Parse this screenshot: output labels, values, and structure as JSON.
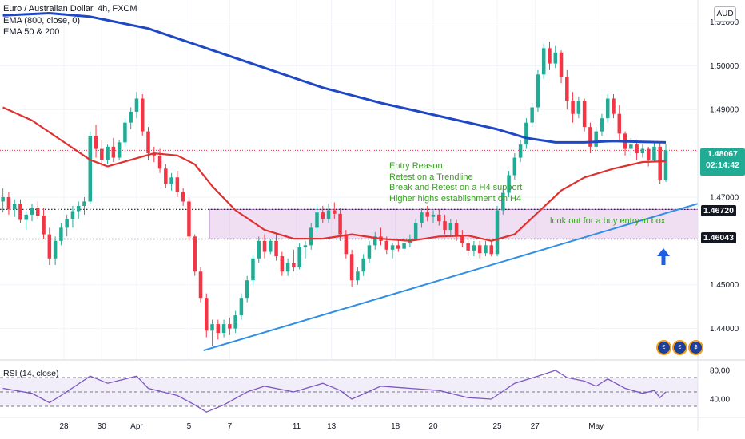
{
  "header": {
    "lines": [
      "Euro / Australian Dollar, 4h, FXCM",
      "EMA (800, close, 0)",
      "EMA 50 & 200"
    ],
    "currency_button": "AUD"
  },
  "price_tags": {
    "last_price": "1.48067",
    "countdown": "02:14:42",
    "level_upper": "1.46720",
    "level_lower": "1.46043"
  },
  "annotations": {
    "entry_reason_lines": [
      "Entry Reason;",
      "Retest on a Trendline",
      "Break and Retest on a H4  support",
      "Higher highs establishment on H4"
    ],
    "box_note": "look out for a buy entry in box"
  },
  "rsi": {
    "label": "RSI (14, close)"
  },
  "icons": [
    "flag-icon",
    "flag-icon",
    "flag-icon"
  ],
  "chart_data": {
    "type": "candlestick",
    "symbol": "Euro / Australian Dollar",
    "timeframe": "4h",
    "source": "FXCM",
    "y_ticks": [
      "1.51000",
      "1.50000",
      "1.49000",
      "1.47000",
      "1.45000",
      "1.44000"
    ],
    "y_range": [
      1.433,
      1.515
    ],
    "x_ticks": [
      "28",
      "30",
      "Apr",
      "5",
      "7",
      "11",
      "13",
      "18",
      "20",
      "25",
      "27",
      "May"
    ],
    "x_range": [
      0,
      120
    ],
    "candles": [
      [
        0,
        1.469,
        1.472,
        1.4665,
        1.47
      ],
      [
        1,
        1.47,
        1.4712,
        1.466,
        1.4672
      ],
      [
        2,
        1.4672,
        1.4695,
        1.4655,
        1.4685
      ],
      [
        3,
        1.4685,
        1.4695,
        1.464,
        1.4648
      ],
      [
        4,
        1.4648,
        1.4668,
        1.4625,
        1.466
      ],
      [
        5,
        1.466,
        1.4685,
        1.4645,
        1.4675
      ],
      [
        6,
        1.4675,
        1.469,
        1.465,
        1.4658
      ],
      [
        7,
        1.4658,
        1.4675,
        1.4605,
        1.4615
      ],
      [
        8,
        1.4615,
        1.463,
        1.4545,
        1.456
      ],
      [
        9,
        1.456,
        1.461,
        1.4545,
        1.46
      ],
      [
        10,
        1.46,
        1.464,
        1.459,
        1.463
      ],
      [
        11,
        1.463,
        1.466,
        1.461,
        1.465
      ],
      [
        12,
        1.465,
        1.468,
        1.463,
        1.4668
      ],
      [
        13,
        1.4668,
        1.469,
        1.465,
        1.468
      ],
      [
        14,
        1.468,
        1.47,
        1.466,
        1.469
      ],
      [
        15,
        1.469,
        1.485,
        1.4685,
        1.484
      ],
      [
        16,
        1.484,
        1.4865,
        1.479,
        1.481
      ],
      [
        17,
        1.481,
        1.483,
        1.477,
        1.4785
      ],
      [
        18,
        1.4785,
        1.482,
        1.4775,
        1.4815
      ],
      [
        19,
        1.4815,
        1.4835,
        1.478,
        1.479
      ],
      [
        20,
        1.479,
        1.483,
        1.4785,
        1.4825
      ],
      [
        21,
        1.4825,
        1.488,
        1.4815,
        1.487
      ],
      [
        22,
        1.487,
        1.4905,
        1.4855,
        1.4895
      ],
      [
        23,
        1.4895,
        1.494,
        1.488,
        1.4925
      ],
      [
        24,
        1.4925,
        1.4935,
        1.484,
        1.485
      ],
      [
        25,
        1.485,
        1.486,
        1.4785,
        1.48
      ],
      [
        26,
        1.48,
        1.4815,
        1.478,
        1.4795
      ],
      [
        27,
        1.4795,
        1.481,
        1.4755,
        1.4765
      ],
      [
        28,
        1.4765,
        1.4775,
        1.472,
        1.473
      ],
      [
        29,
        1.473,
        1.4755,
        1.4715,
        1.4745
      ],
      [
        30,
        1.4745,
        1.476,
        1.47,
        1.4712
      ],
      [
        31,
        1.4712,
        1.472,
        1.468,
        1.469
      ],
      [
        32,
        1.469,
        1.47,
        1.46,
        1.461
      ],
      [
        33,
        1.461,
        1.4615,
        1.452,
        1.453
      ],
      [
        34,
        1.453,
        1.454,
        1.446,
        1.447
      ],
      [
        35,
        1.447,
        1.448,
        1.438,
        1.4395
      ],
      [
        36,
        1.4395,
        1.442,
        1.436,
        1.441
      ],
      [
        37,
        1.441,
        1.442,
        1.4375,
        1.439
      ],
      [
        38,
        1.439,
        1.442,
        1.438,
        1.441
      ],
      [
        39,
        1.441,
        1.4425,
        1.4385,
        1.44
      ],
      [
        40,
        1.44,
        1.444,
        1.439,
        1.443
      ],
      [
        41,
        1.443,
        1.448,
        1.442,
        1.447
      ],
      [
        42,
        1.447,
        1.452,
        1.446,
        1.451
      ],
      [
        43,
        1.451,
        1.457,
        1.45,
        1.456
      ],
      [
        44,
        1.456,
        1.461,
        1.455,
        1.46
      ],
      [
        45,
        1.46,
        1.4615,
        1.456,
        1.4575
      ],
      [
        46,
        1.4575,
        1.4605,
        1.457,
        1.46
      ],
      [
        47,
        1.46,
        1.4615,
        1.4555,
        1.4565
      ],
      [
        48,
        1.4565,
        1.4575,
        1.452,
        1.453
      ],
      [
        49,
        1.453,
        1.456,
        1.452,
        1.455
      ],
      [
        50,
        1.455,
        1.458,
        1.453,
        1.454
      ],
      [
        51,
        1.454,
        1.4595,
        1.4535,
        1.4585
      ],
      [
        52,
        1.4585,
        1.46,
        1.456,
        1.459
      ],
      [
        53,
        1.459,
        1.464,
        1.458,
        1.463
      ],
      [
        54,
        1.463,
        1.468,
        1.462,
        1.4665
      ],
      [
        55,
        1.4665,
        1.468,
        1.464,
        1.465
      ],
      [
        56,
        1.465,
        1.4685,
        1.464,
        1.467
      ],
      [
        57,
        1.467,
        1.4688,
        1.465,
        1.4662
      ],
      [
        58,
        1.4662,
        1.4675,
        1.46,
        1.4615
      ],
      [
        59,
        1.4615,
        1.4625,
        1.456,
        1.457
      ],
      [
        60,
        1.457,
        1.458,
        1.4495,
        1.451
      ],
      [
        61,
        1.451,
        1.454,
        1.45,
        1.453
      ],
      [
        62,
        1.453,
        1.457,
        1.452,
        1.456
      ],
      [
        63,
        1.456,
        1.46,
        1.455,
        1.459
      ],
      [
        64,
        1.459,
        1.462,
        1.458,
        1.461
      ],
      [
        65,
        1.461,
        1.463,
        1.459,
        1.46
      ],
      [
        66,
        1.46,
        1.461,
        1.457,
        1.458
      ],
      [
        67,
        1.458,
        1.4595,
        1.456,
        1.459
      ],
      [
        68,
        1.459,
        1.4605,
        1.4575,
        1.4582
      ],
      [
        69,
        1.4582,
        1.46,
        1.4575,
        1.4595
      ],
      [
        70,
        1.4595,
        1.4615,
        1.4585,
        1.4605
      ],
      [
        71,
        1.4605,
        1.465,
        1.46,
        1.464
      ],
      [
        72,
        1.464,
        1.4675,
        1.463,
        1.4665
      ],
      [
        73,
        1.4665,
        1.468,
        1.4645,
        1.4655
      ],
      [
        74,
        1.4655,
        1.467,
        1.464,
        1.466
      ],
      [
        75,
        1.466,
        1.4672,
        1.4635,
        1.4645
      ],
      [
        76,
        1.4645,
        1.466,
        1.4615,
        1.4625
      ],
      [
        77,
        1.4625,
        1.465,
        1.461,
        1.464
      ],
      [
        78,
        1.464,
        1.4648,
        1.46,
        1.461
      ],
      [
        79,
        1.461,
        1.4625,
        1.4585,
        1.4595
      ],
      [
        80,
        1.4595,
        1.4605,
        1.4565,
        1.4578
      ],
      [
        81,
        1.4578,
        1.46,
        1.4565,
        1.459
      ],
      [
        82,
        1.459,
        1.46,
        1.456,
        1.4572
      ],
      [
        83,
        1.4572,
        1.46,
        1.4565,
        1.459
      ],
      [
        84,
        1.459,
        1.46,
        1.4565,
        1.457
      ],
      [
        85,
        1.457,
        1.468,
        1.4565,
        1.467
      ],
      [
        86,
        1.467,
        1.472,
        1.466,
        1.471
      ],
      [
        87,
        1.471,
        1.476,
        1.47,
        1.475
      ],
      [
        88,
        1.475,
        1.48,
        1.474,
        1.479
      ],
      [
        89,
        1.479,
        1.483,
        1.478,
        1.482
      ],
      [
        90,
        1.482,
        1.488,
        1.481,
        1.487
      ],
      [
        91,
        1.487,
        1.4915,
        1.486,
        1.4905
      ],
      [
        92,
        1.4905,
        1.499,
        1.4895,
        1.498
      ],
      [
        93,
        1.498,
        1.505,
        1.497,
        1.504
      ],
      [
        94,
        1.504,
        1.5055,
        1.499,
        1.5005
      ],
      [
        95,
        1.5005,
        1.5045,
        1.4995,
        1.503
      ],
      [
        96,
        1.503,
        1.5035,
        1.496,
        1.4975
      ],
      [
        97,
        1.4975,
        1.499,
        1.49,
        1.492
      ],
      [
        98,
        1.492,
        1.494,
        1.487,
        1.489
      ],
      [
        99,
        1.489,
        1.493,
        1.488,
        1.492
      ],
      [
        100,
        1.492,
        1.4925,
        1.485,
        1.486
      ],
      [
        101,
        1.486,
        1.487,
        1.48,
        1.4815
      ],
      [
        102,
        1.4815,
        1.486,
        1.481,
        1.485
      ],
      [
        103,
        1.485,
        1.489,
        1.484,
        1.488
      ],
      [
        104,
        1.488,
        1.4935,
        1.487,
        1.4925
      ],
      [
        105,
        1.4925,
        1.4935,
        1.488,
        1.489
      ],
      [
        106,
        1.489,
        1.491,
        1.483,
        1.4845
      ],
      [
        107,
        1.4845,
        1.485,
        1.4795,
        1.481
      ],
      [
        108,
        1.481,
        1.4835,
        1.4795,
        1.482
      ],
      [
        109,
        1.482,
        1.483,
        1.4785,
        1.48
      ],
      [
        110,
        1.48,
        1.482,
        1.479,
        1.481
      ],
      [
        111,
        1.481,
        1.4815,
        1.477,
        1.4785
      ],
      [
        112,
        1.4785,
        1.4825,
        1.478,
        1.4815
      ],
      [
        113,
        1.4815,
        1.4825,
        1.473,
        1.474
      ],
      [
        114,
        1.474,
        1.482,
        1.4735,
        1.4807
      ]
    ],
    "series": [
      {
        "name": "EMA (800, close, 0)",
        "color": "#1e48c4",
        "values": [
          [
            0,
            1.5115
          ],
          [
            8,
            1.512
          ],
          [
            15,
            1.5112
          ],
          [
            25,
            1.5085
          ],
          [
            35,
            1.504
          ],
          [
            45,
            1.4995
          ],
          [
            55,
            1.495
          ],
          [
            65,
            1.4915
          ],
          [
            75,
            1.4885
          ],
          [
            85,
            1.4855
          ],
          [
            90,
            1.4835
          ],
          [
            95,
            1.4825
          ],
          [
            100,
            1.4825
          ],
          [
            105,
            1.4828
          ],
          [
            110,
            1.4826
          ],
          [
            114,
            1.4825
          ]
        ]
      },
      {
        "name": "EMA 50 & 200",
        "color": "#e03030",
        "values": [
          [
            0,
            1.4905
          ],
          [
            5,
            1.4875
          ],
          [
            10,
            1.483
          ],
          [
            15,
            1.4785
          ],
          [
            18,
            1.477
          ],
          [
            22,
            1.4785
          ],
          [
            26,
            1.48
          ],
          [
            30,
            1.4795
          ],
          [
            33,
            1.4775
          ],
          [
            36,
            1.4725
          ],
          [
            40,
            1.467
          ],
          [
            45,
            1.4625
          ],
          [
            50,
            1.4605
          ],
          [
            55,
            1.4605
          ],
          [
            60,
            1.4615
          ],
          [
            65,
            1.4605
          ],
          [
            70,
            1.46
          ],
          [
            75,
            1.461
          ],
          [
            80,
            1.4612
          ],
          [
            84,
            1.46
          ],
          [
            88,
            1.4615
          ],
          [
            92,
            1.4665
          ],
          [
            96,
            1.4715
          ],
          [
            100,
            1.4745
          ],
          [
            105,
            1.4765
          ],
          [
            110,
            1.478
          ],
          [
            114,
            1.4782
          ]
        ]
      }
    ],
    "levels": [
      1.4672,
      1.46043
    ],
    "last_price": 1.48067,
    "trendline": [
      [
        35,
        1.435
      ],
      [
        120,
        1.4685
      ]
    ],
    "rsi": {
      "y_ticks": [
        "80.00",
        "40.00"
      ],
      "range": [
        20,
        90
      ],
      "bands": [
        70,
        50,
        30
      ],
      "values": [
        [
          0,
          55
        ],
        [
          5,
          48
        ],
        [
          8,
          35
        ],
        [
          10,
          45
        ],
        [
          15,
          72
        ],
        [
          18,
          62
        ],
        [
          23,
          72
        ],
        [
          25,
          55
        ],
        [
          30,
          45
        ],
        [
          33,
          32
        ],
        [
          35,
          22
        ],
        [
          38,
          32
        ],
        [
          42,
          50
        ],
        [
          45,
          58
        ],
        [
          50,
          50
        ],
        [
          55,
          62
        ],
        [
          58,
          52
        ],
        [
          60,
          40
        ],
        [
          65,
          58
        ],
        [
          70,
          55
        ],
        [
          75,
          52
        ],
        [
          80,
          42
        ],
        [
          84,
          40
        ],
        [
          88,
          62
        ],
        [
          92,
          72
        ],
        [
          95,
          80
        ],
        [
          97,
          70
        ],
        [
          100,
          65
        ],
        [
          102,
          58
        ],
        [
          104,
          68
        ],
        [
          107,
          55
        ],
        [
          110,
          48
        ],
        [
          112,
          52
        ],
        [
          113,
          42
        ],
        [
          114,
          50
        ]
      ]
    }
  }
}
